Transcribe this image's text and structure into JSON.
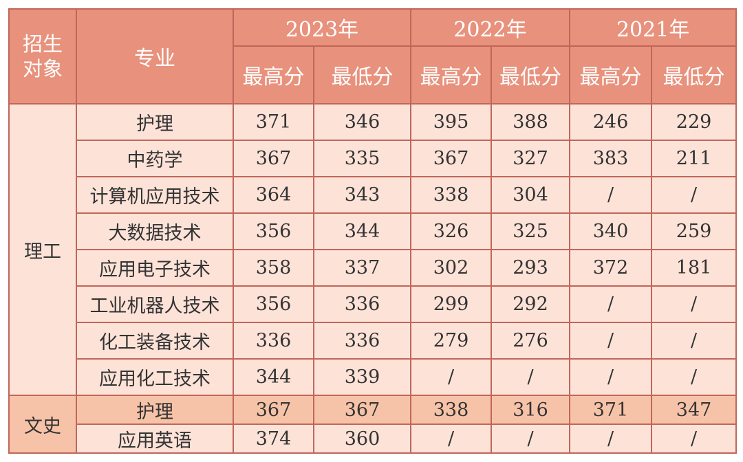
{
  "header": {
    "corner_line1": "招生",
    "corner_line2": "对象",
    "major": "专业",
    "years": [
      "2023年",
      "2022年",
      "2021年"
    ],
    "max_label": "最高分",
    "min_label": "最低分"
  },
  "groups": [
    {
      "name": "理工",
      "rows": [
        {
          "major": "护理",
          "scores": [
            "371",
            "346",
            "395",
            "388",
            "246",
            "229"
          ]
        },
        {
          "major": "中药学",
          "scores": [
            "367",
            "335",
            "367",
            "327",
            "383",
            "211"
          ]
        },
        {
          "major": "计算机应用技术",
          "scores": [
            "364",
            "343",
            "338",
            "304",
            "/",
            "/"
          ]
        },
        {
          "major": "大数据技术",
          "scores": [
            "356",
            "344",
            "326",
            "325",
            "340",
            "259"
          ]
        },
        {
          "major": "应用电子技术",
          "scores": [
            "358",
            "337",
            "302",
            "293",
            "372",
            "181"
          ]
        },
        {
          "major": "工业机器人技术",
          "scores": [
            "356",
            "336",
            "299",
            "292",
            "/",
            "/"
          ]
        },
        {
          "major": "化工装备技术",
          "scores": [
            "336",
            "336",
            "279",
            "276",
            "/",
            "/"
          ]
        },
        {
          "major": "应用化工技术",
          "scores": [
            "344",
            "339",
            "/",
            "/",
            "/",
            "/"
          ]
        }
      ]
    },
    {
      "name": "文史",
      "rows": [
        {
          "major": "护理",
          "scores": [
            "367",
            "367",
            "338",
            "316",
            "371",
            "347"
          ]
        },
        {
          "major": "应用英语",
          "scores": [
            "374",
            "360",
            "/",
            "/",
            "/",
            "/"
          ]
        }
      ]
    }
  ],
  "colors": {
    "header_bg": "#e8917c",
    "row_bg": "#fde2d8",
    "wenshi_bg": "#f7c3a8",
    "border": "#c0665a"
  }
}
